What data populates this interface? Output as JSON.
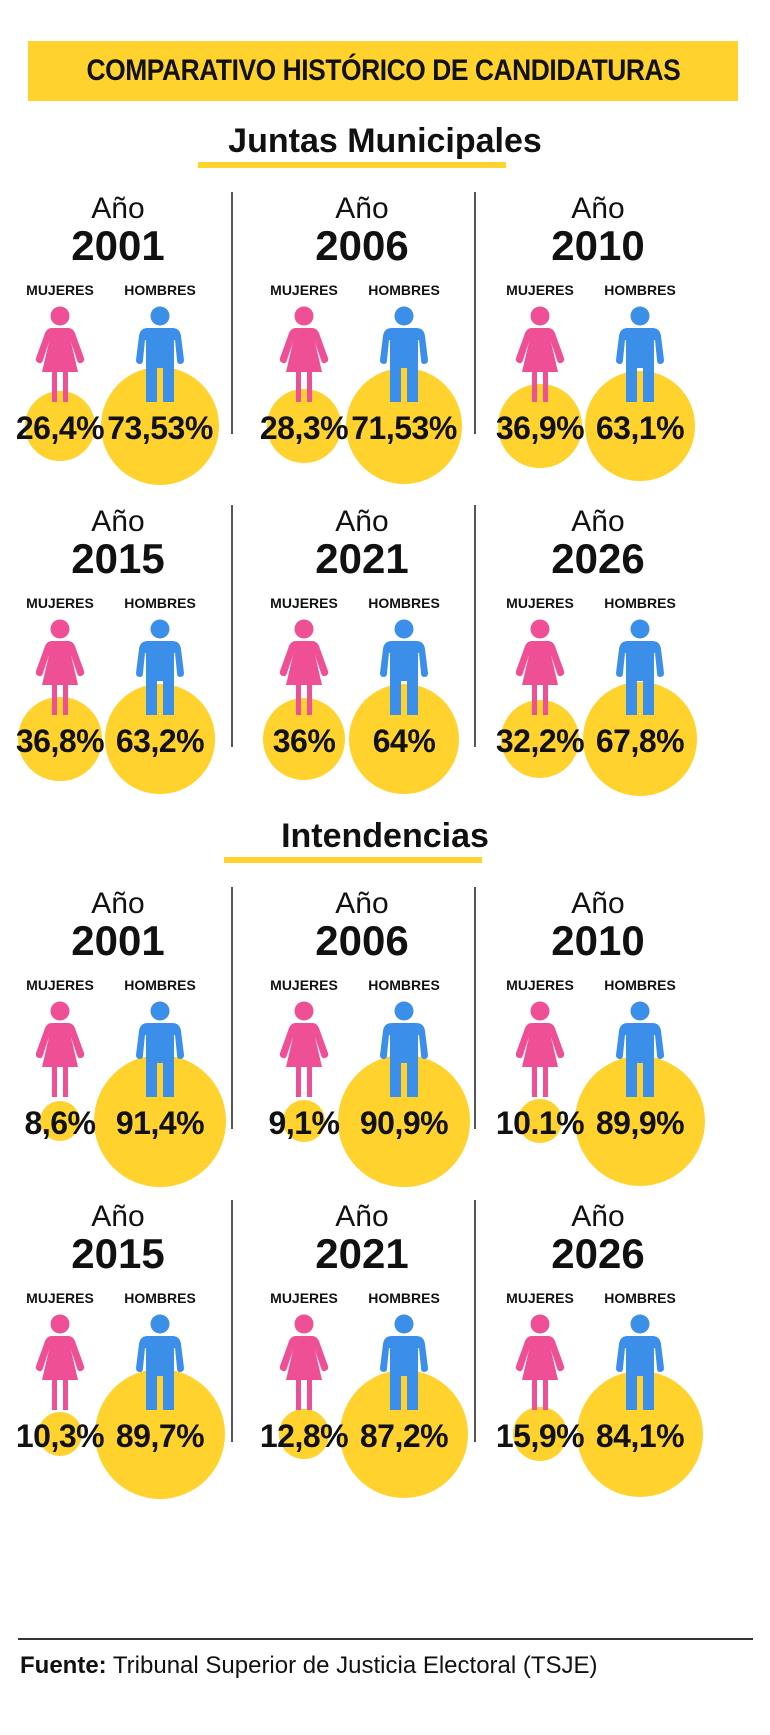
{
  "title": "COMPARATIVO HISTÓRICO DE CANDIDATURAS",
  "labels": {
    "ano": "Año",
    "mujeres": "MUJERES",
    "hombres": "HOMBRES"
  },
  "colors": {
    "accent": "#ffd22e",
    "women": "#ef4f95",
    "men": "#3b8fe8"
  },
  "icons": {
    "women": "woman-icon",
    "men": "man-icon"
  },
  "sections": [
    {
      "title": "Juntas Municipales",
      "items": [
        {
          "year": "2001",
          "mujeres": "26,4%",
          "hombres": "73,53%",
          "w": 26.4,
          "m": 73.53
        },
        {
          "year": "2006",
          "mujeres": "28,3%",
          "hombres": "71,53%",
          "w": 28.3,
          "m": 71.53
        },
        {
          "year": "2010",
          "mujeres": "36,9%",
          "hombres": "63,1%",
          "w": 36.9,
          "m": 63.1
        },
        {
          "year": "2015",
          "mujeres": "36,8%",
          "hombres": "63,2%",
          "w": 36.8,
          "m": 63.2
        },
        {
          "year": "2021",
          "mujeres": "36%",
          "hombres": "64%",
          "w": 36,
          "m": 64
        },
        {
          "year": "2026",
          "mujeres": "32,2%",
          "hombres": "67,8%",
          "w": 32.2,
          "m": 67.8
        }
      ]
    },
    {
      "title": "Intendencias",
      "items": [
        {
          "year": "2001",
          "mujeres": "8,6%",
          "hombres": "91,4%",
          "w": 8.6,
          "m": 91.4
        },
        {
          "year": "2006",
          "mujeres": "9,1%",
          "hombres": "90,9%",
          "w": 9.1,
          "m": 90.9
        },
        {
          "year": "2010",
          "mujeres": "10.1%",
          "hombres": "89,9%",
          "w": 10.1,
          "m": 89.9
        },
        {
          "year": "2015",
          "mujeres": "10,3%",
          "hombres": "89,7%",
          "w": 10.3,
          "m": 89.7
        },
        {
          "year": "2021",
          "mujeres": "12,8%",
          "hombres": "87,2%",
          "w": 12.8,
          "m": 87.2
        },
        {
          "year": "2026",
          "mujeres": "15,9%",
          "hombres": "84,1%",
          "w": 15.9,
          "m": 84.1
        }
      ]
    }
  ],
  "footer": {
    "label": "Fuente:",
    "text": " Tribunal Superior de Justicia Electoral (TSJE)"
  }
}
